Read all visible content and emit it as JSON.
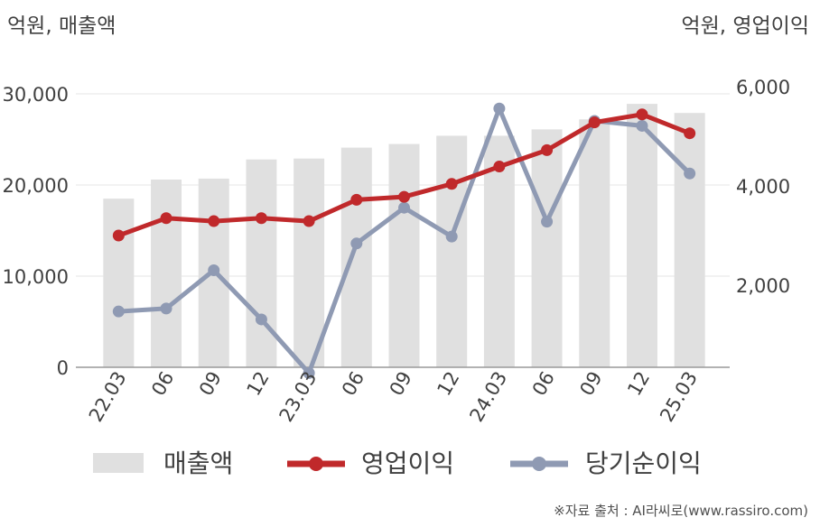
{
  "chart_data": {
    "type": "bar+line",
    "unit_left": "억원, 매출액",
    "unit_right": "억원, 영업이익",
    "categories": [
      "22.03",
      "06",
      "09",
      "12",
      "23.03",
      "06",
      "09",
      "12",
      "24.03",
      "06",
      "09",
      "12",
      "25.03"
    ],
    "ylim_left": [
      0,
      30000
    ],
    "yticks_left": [
      0,
      10000,
      20000,
      30000
    ],
    "ytick_labels_left": [
      "0",
      "10,000",
      "20,000",
      "30,000"
    ],
    "ylim_right": [
      200,
      6000
    ],
    "yticks_right": [
      2000,
      4000,
      6000
    ],
    "ytick_labels_right": [
      "2,000",
      "4,000",
      "6,000"
    ],
    "series": [
      {
        "name": "매출액",
        "kind": "bar",
        "axis": "left",
        "color": "#e0e0e0",
        "values": [
          18500,
          20600,
          20700,
          22800,
          22900,
          24100,
          24500,
          25400,
          25400,
          26100,
          27200,
          28900,
          27900
        ]
      },
      {
        "name": "영업이익",
        "kind": "line",
        "axis": "right",
        "color": "#c0292b",
        "values": [
          3000,
          3350,
          3290,
          3350,
          3290,
          3720,
          3780,
          4040,
          4390,
          4720,
          5280,
          5440,
          5060
        ]
      },
      {
        "name": "당기순이익",
        "kind": "line",
        "axis": "right",
        "color": "#8f9ab3",
        "values": [
          1470,
          1530,
          2300,
          1310,
          230,
          2840,
          3560,
          2980,
          5560,
          3280,
          5310,
          5210,
          4250
        ]
      }
    ],
    "grid": true,
    "legend": "bottom"
  },
  "source_text": "※자료 출처 : AI라씨로(www.rassiro.com)"
}
